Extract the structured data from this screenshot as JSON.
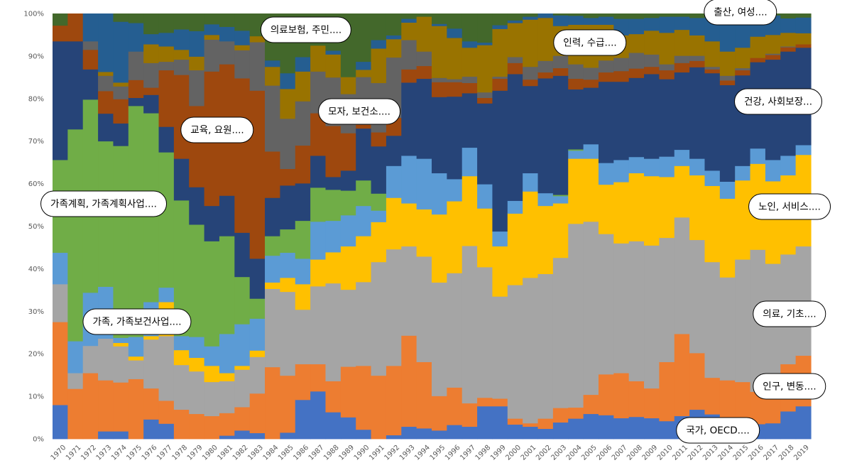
{
  "chart_data": {
    "type": "area",
    "stacked": "percent",
    "title": "",
    "xlabel": "",
    "ylabel": "",
    "ylim": [
      0,
      100
    ],
    "y_ticks": [
      "0%",
      "10%",
      "20%",
      "30%",
      "40%",
      "50%",
      "60%",
      "70%",
      "80%",
      "90%",
      "100%"
    ],
    "grid": false,
    "legend": "none (callout labels on areas)",
    "categories": [
      "1970",
      "1971",
      "1972",
      "1973",
      "1974",
      "1975",
      "1976",
      "1977",
      "1978",
      "1979",
      "1980",
      "1981",
      "1982",
      "1983",
      "1984",
      "1985",
      "1986",
      "1987",
      "1988",
      "1989",
      "1990",
      "1991",
      "1992",
      "1993",
      "1994",
      "1995",
      "1996",
      "1997",
      "1998",
      "1999",
      "2000",
      "2001",
      "2002",
      "2003",
      "2004",
      "2005",
      "2006",
      "2007",
      "2008",
      "2009",
      "2010",
      "2011",
      "2012",
      "2013",
      "2014",
      "2015",
      "2016",
      "2017",
      "2018",
      "2019"
    ],
    "series": [
      {
        "name": "국가, OECD....",
        "color": "#4472C4",
        "values": [
          8,
          0,
          0,
          1.8,
          1.8,
          0,
          4.6,
          3.6,
          0,
          0,
          0,
          0.8,
          2.0,
          1.4,
          0,
          1.5,
          9.2,
          11.2,
          6.3,
          5.1,
          2.2,
          0,
          0.9,
          2.9,
          2.5,
          2.0,
          3.3,
          2.9,
          7.7,
          7.7,
          3.4,
          2.9,
          2.4,
          3.9,
          4.8,
          5.9,
          5.6,
          4.9,
          5.2,
          4.9,
          4.2,
          5.4,
          6.9,
          5.8,
          3.5,
          3.5,
          3.5,
          3.7,
          6.5,
          7.7
        ]
      },
      {
        "name": "인구, 변동....",
        "color": "#ED7D31",
        "values": [
          19.5,
          11.8,
          15.5,
          12.0,
          11.5,
          14.1,
          7.3,
          5.4,
          6.9,
          5.9,
          5.4,
          5.3,
          5.5,
          9.3,
          16.9,
          13.4,
          8.4,
          6.4,
          7.3,
          11.9,
          15.0,
          14.9,
          16.3,
          21.4,
          15.6,
          8.1,
          8.8,
          5.5,
          2.0,
          1.8,
          1.4,
          0.8,
          2.4,
          3.4,
          2.6,
          4.5,
          9.6,
          10.6,
          8.4,
          7.0,
          13.9,
          19.3,
          13.3,
          8.6,
          10.3,
          9.9,
          7.6,
          6.3,
          11.1,
          11.9
        ]
      },
      {
        "name": "의료, 기초....",
        "color": "#A5A5A5",
        "values": [
          8.9,
          3.7,
          6.4,
          9.8,
          8.5,
          4.4,
          11.5,
          15.2,
          10.5,
          10.0,
          8.0,
          7.5,
          8.8,
          8.6,
          18.4,
          19.7,
          12.8,
          18.3,
          23.0,
          18.1,
          19.7,
          26.7,
          27.4,
          21.0,
          24.8,
          26.7,
          26.9,
          37.0,
          30.7,
          24.0,
          31.4,
          34.2,
          34.0,
          35.3,
          43.2,
          40.7,
          33.0,
          30.5,
          32.9,
          33.6,
          29.2,
          27.4,
          26.6,
          27.2,
          24.2,
          28.8,
          33.4,
          31.2,
          25.8,
          25.7
        ]
      },
      {
        "name": "노인, 서비스....",
        "color": "#FFC000",
        "values": [
          0,
          0,
          0,
          0,
          0.8,
          0.9,
          0.8,
          8.0,
          3.5,
          3.2,
          3.8,
          1.9,
          0.9,
          1.5,
          1.5,
          3.3,
          6.0,
          6.3,
          7.3,
          10.2,
          10.8,
          9.4,
          12.1,
          10.1,
          11.1,
          16.0,
          16.9,
          16.4,
          13.8,
          11.8,
          16.8,
          20.3,
          16.0,
          12.8,
          15.3,
          14.8,
          11.6,
          14.4,
          16.0,
          16.3,
          14.3,
          12.1,
          15.2,
          17.9,
          18.5,
          18.6,
          20.2,
          19.4,
          18.6,
          21.5
        ]
      },
      {
        "name": "가족, 가족보건사업....",
        "color": "#5B9BD5",
        "values": [
          7.4,
          7.5,
          12.5,
          12.2,
          1.2,
          4.6,
          8.0,
          3.4,
          3.3,
          4.9,
          4.6,
          9.2,
          9.8,
          7.5,
          6.3,
          5.9,
          6.0,
          8.9,
          7.4,
          7.3,
          7.1,
          2.7,
          7.5,
          11.2,
          11.9,
          9.7,
          5.2,
          6.7,
          5.7,
          3.5,
          3.0,
          4.3,
          3.0,
          1.7,
          1.9,
          3.4,
          5.1,
          5.2,
          3.8,
          4.1,
          4.8,
          3.8,
          3.9,
          3.6,
          4.0,
          3.4,
          3.6,
          5.0,
          4.6,
          2.3
        ]
      },
      {
        "name": "가족계획, 가족계획사업....",
        "color": "#70AD47",
        "values": [
          21.8,
          49.8,
          45.4,
          34.2,
          45.1,
          54.3,
          44.4,
          31.8,
          31.9,
          26.4,
          24.7,
          23.0,
          11.1,
          4.7,
          4.6,
          5.5,
          8.9,
          8.0,
          7.3,
          5.8,
          6.0,
          4.0,
          0,
          0,
          0,
          0,
          0,
          0,
          0,
          0,
          0,
          0,
          0,
          0.3,
          0.3,
          0,
          0,
          0,
          0,
          0,
          0,
          0,
          0,
          0,
          0,
          0,
          0,
          0,
          0,
          0
        ]
      },
      {
        "name": "건강, 사회보장...",
        "color": "#264478",
        "values": [
          27.9,
          20.7,
          7.1,
          6.5,
          5.3,
          1.9,
          4.3,
          6.0,
          9.8,
          8.8,
          8.3,
          9.5,
          10.4,
          9.4,
          9.0,
          10.3,
          8.8,
          7.5,
          3.0,
          4.7,
          12.2,
          11.1,
          7.1,
          17.2,
          18.8,
          17.9,
          19.4,
          12.8,
          19.0,
          33.1,
          29.8,
          20.5,
          27.0,
          28.0,
          14.1,
          13.3,
          19.1,
          18.4,
          18.6,
          19.9,
          18.2,
          18.2,
          21.5,
          22.9,
          22.7,
          21.3,
          20.3,
          23.6,
          24.5,
          22.9
        ]
      },
      {
        "name": "교육, 요원....",
        "color": "#9E480E",
        "values": [
          3.7,
          6.5,
          4.6,
          5.3,
          5.7,
          4.2,
          1.7,
          13.3,
          19.7,
          19.1,
          31.6,
          30.9,
          36.3,
          39.5,
          10.9,
          3.9,
          8.9,
          10.0,
          12.0,
          8.8,
          0.9,
          3.3,
          4.2,
          3.1,
          3.0,
          3.5,
          3.4,
          2.4,
          1.3,
          2.8,
          2.6,
          1.5,
          1.4,
          1.8,
          2.5,
          1.9,
          2.2,
          2.5,
          2.2,
          1.7,
          2.1,
          2.2,
          1.5,
          0.9,
          1.1,
          1.2,
          1.0,
          1.1,
          1.0,
          0.8
        ]
      },
      {
        "name": "모자, 보건소....",
        "color": "#636363",
        "values": [
          0,
          0,
          2.0,
          3.6,
          3.0,
          6.7,
          5.8,
          2.0,
          3.6,
          8.4,
          7.5,
          5.4,
          6.6,
          11.4,
          15.5,
          11.8,
          10.4,
          9.8,
          11.4,
          9.2,
          11.2,
          11.6,
          14.2,
          6.9,
          3.4,
          1.0,
          0.7,
          1.5,
          1.3,
          0.5,
          1.4,
          3.0,
          2.7,
          2.9,
          3.4,
          2.8,
          2.8,
          3.1,
          3.7,
          2.9,
          1.4,
          1.7,
          1.2,
          0.6,
          1.1,
          0.5,
          0,
          0.3,
          0.2,
          0
        ]
      },
      {
        "name": "인력, 수급....",
        "color": "#997300",
        "values": [
          0,
          0,
          0,
          0.9,
          0.9,
          0,
          4.4,
          3.6,
          2.3,
          3.2,
          1.1,
          0,
          1.2,
          1.4,
          4.4,
          7.0,
          7.0,
          6.1,
          5.4,
          4.0,
          1.7,
          8.1,
          4.3,
          4.1,
          8.2,
          12.2,
          9.7,
          6.8,
          11.1,
          11.2,
          8.0,
          11.1,
          10.1,
          7.0,
          9.3,
          10.1,
          8.4,
          5.3,
          4.4,
          5.6,
          7.4,
          6.1,
          4.8,
          6.0,
          5.7,
          4.8,
          5.0,
          4.4,
          3.2,
          2.6
        ]
      },
      {
        "name": "출산, 여성....",
        "color": "#255E91",
        "values": [
          0,
          0,
          6.5,
          13.7,
          14.3,
          6.7,
          2.4,
          3.2,
          4.8,
          6.0,
          2.5,
          3.4,
          3.4,
          0,
          1.5,
          3.7,
          3.4,
          0,
          0.9,
          0,
          1.9,
          2.0,
          0.9,
          0.9,
          0,
          0.5,
          2.2,
          1.5,
          0.6,
          0.9,
          0.6,
          0.7,
          1.0,
          2.5,
          2.1,
          1.6,
          1.9,
          3.9,
          3.6,
          3.0,
          3.8,
          3.1,
          4.1,
          6.5,
          8.9,
          8.0,
          4.7,
          4.6,
          3.4,
          3.7
        ]
      },
      {
        "name": "의료보험, 주민....",
        "color": "#43682B",
        "values": [
          2.8,
          0,
          0,
          0,
          1.9,
          2.2,
          4.8,
          4.5,
          3.7,
          4.1,
          2.5,
          3.1,
          4.0,
          5.3,
          11.0,
          14.0,
          10.2,
          7.5,
          8.7,
          14.9,
          11.3,
          6.2,
          5.1,
          1.2,
          0.7,
          2.4,
          3.5,
          6.5,
          6.8,
          2.7,
          1.6,
          0.7,
          0,
          0.4,
          0.5,
          1.0,
          0.7,
          1.2,
          1.2,
          1.0,
          0.7,
          0.7,
          1.0,
          0,
          0,
          0,
          0.7,
          0.4,
          1.1,
          0.9
        ]
      }
    ]
  }
}
